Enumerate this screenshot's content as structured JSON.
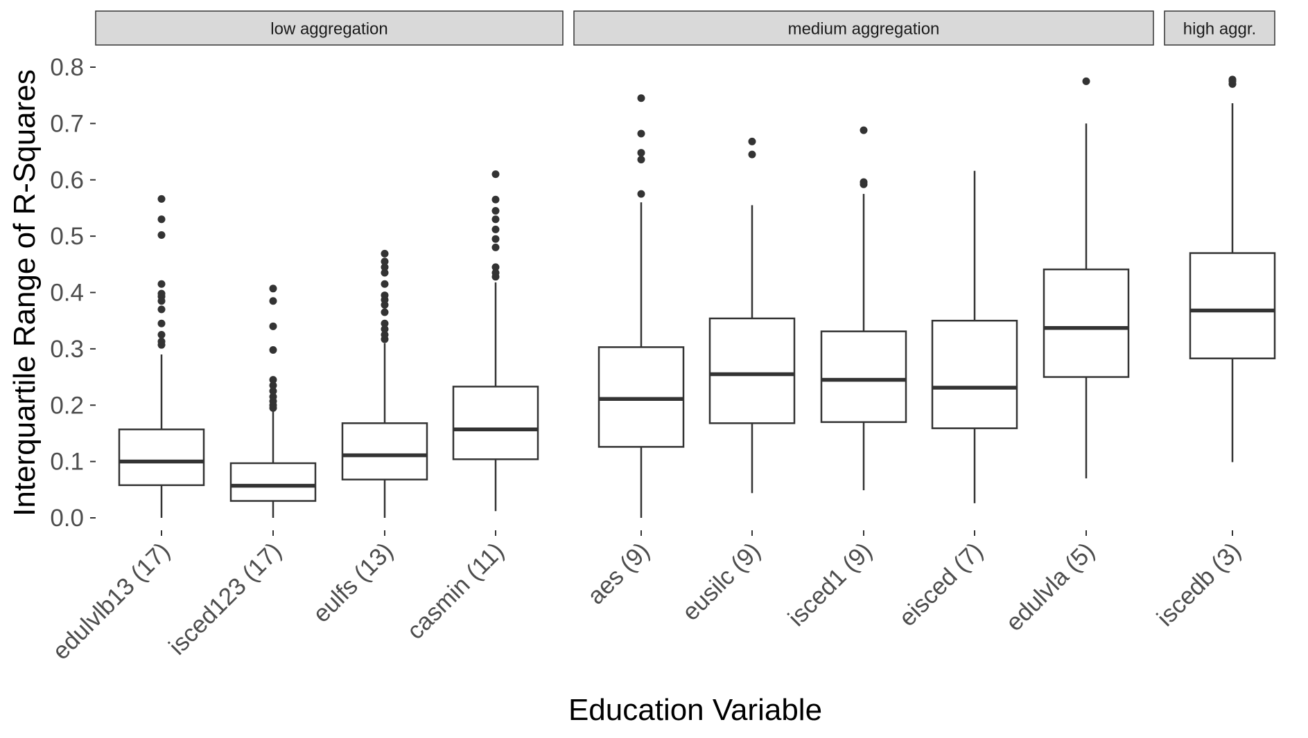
{
  "chart_data": {
    "type": "box",
    "xlabel": "Education Variable",
    "ylabel": "Interquartile Range of R-Squares",
    "ylim": [
      0,
      0.8
    ],
    "yticks": [
      "0.0",
      "0.1",
      "0.2",
      "0.3",
      "0.4",
      "0.5",
      "0.6",
      "0.7",
      "0.8"
    ],
    "grid": false,
    "facets": [
      {
        "label": "low aggregation",
        "categories": [
          {
            "name": "edulvlb13 (17)",
            "min": 0.0,
            "q1": 0.058,
            "median": 0.1,
            "q3": 0.157,
            "max": 0.29,
            "outliers": [
              0.307,
              0.313,
              0.325,
              0.345,
              0.37,
              0.385,
              0.393,
              0.398,
              0.415,
              0.502,
              0.53,
              0.566
            ]
          },
          {
            "name": "isced123 (17)",
            "min": 0.0,
            "q1": 0.03,
            "median": 0.057,
            "q3": 0.097,
            "max": 0.19,
            "outliers": [
              0.195,
              0.2,
              0.207,
              0.215,
              0.225,
              0.235,
              0.245,
              0.298,
              0.34,
              0.385,
              0.407
            ]
          },
          {
            "name": "eulfs (13)",
            "min": 0.0,
            "q1": 0.068,
            "median": 0.111,
            "q3": 0.168,
            "max": 0.31,
            "outliers": [
              0.317,
              0.325,
              0.335,
              0.345,
              0.365,
              0.378,
              0.387,
              0.395,
              0.415,
              0.435,
              0.445,
              0.455,
              0.469
            ]
          },
          {
            "name": "casmin (11)",
            "min": 0.012,
            "q1": 0.104,
            "median": 0.157,
            "q3": 0.233,
            "max": 0.418,
            "outliers": [
              0.428,
              0.435,
              0.445,
              0.48,
              0.495,
              0.512,
              0.53,
              0.545,
              0.565,
              0.61
            ]
          }
        ]
      },
      {
        "label": "medium aggregation",
        "categories": [
          {
            "name": "aes (9)",
            "min": 0.0,
            "q1": 0.126,
            "median": 0.211,
            "q3": 0.303,
            "max": 0.56,
            "outliers": [
              0.575,
              0.636,
              0.648,
              0.682,
              0.745
            ]
          },
          {
            "name": "eusilc (9)",
            "min": 0.044,
            "q1": 0.168,
            "median": 0.255,
            "q3": 0.354,
            "max": 0.555,
            "outliers": [
              0.645,
              0.668
            ]
          },
          {
            "name": "isced1 (9)",
            "min": 0.049,
            "q1": 0.17,
            "median": 0.245,
            "q3": 0.331,
            "max": 0.575,
            "outliers": [
              0.592,
              0.596,
              0.688
            ]
          },
          {
            "name": "eisced (7)",
            "min": 0.026,
            "q1": 0.159,
            "median": 0.231,
            "q3": 0.35,
            "max": 0.616,
            "outliers": []
          },
          {
            "name": "edulvla (5)",
            "min": 0.07,
            "q1": 0.25,
            "median": 0.337,
            "q3": 0.441,
            "max": 0.7,
            "outliers": [
              0.775
            ]
          }
        ]
      },
      {
        "label": "high aggr.",
        "categories": [
          {
            "name": "iscedb (3)",
            "min": 0.099,
            "q1": 0.283,
            "median": 0.368,
            "q3": 0.47,
            "max": 0.736,
            "outliers": [
              0.77,
              0.775,
              0.778
            ]
          }
        ]
      }
    ]
  }
}
